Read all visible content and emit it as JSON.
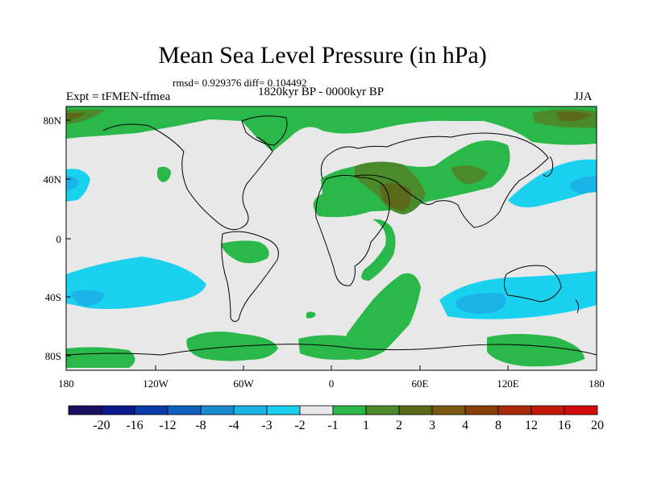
{
  "header": {
    "title": "Mean Sea Level Pressure (in hPa)",
    "stats": "rmsd= 0.929376 diff= 0.104492",
    "period": "1820kyr BP - 0000kyr BP",
    "experiment": "Expt = tFMEN-tfmea",
    "season": "JJA"
  },
  "map": {
    "lat_labels": [
      "80N",
      "40N",
      "0",
      "40S",
      "80S"
    ],
    "lon_labels": [
      "180",
      "120W",
      "60W",
      "0",
      "60E",
      "120E",
      "180"
    ]
  },
  "colorbar": {
    "colors": [
      "#1a1060",
      "#0a1a8a",
      "#0a3aa8",
      "#1060c0",
      "#1a8cd2",
      "#1ab4e6",
      "#1ad2ee",
      "#e8e8e8",
      "#2ab84a",
      "#4a8a2a",
      "#5a6a1a",
      "#7a5a10",
      "#8a4008",
      "#a82a08",
      "#c21a08",
      "#d20a0a"
    ],
    "labels": [
      "-20",
      "-16",
      "-12",
      "-8",
      "-4",
      "-3",
      "-2",
      "-1",
      "1",
      "2",
      "3",
      "4",
      "8",
      "12",
      "16",
      "20"
    ]
  }
}
